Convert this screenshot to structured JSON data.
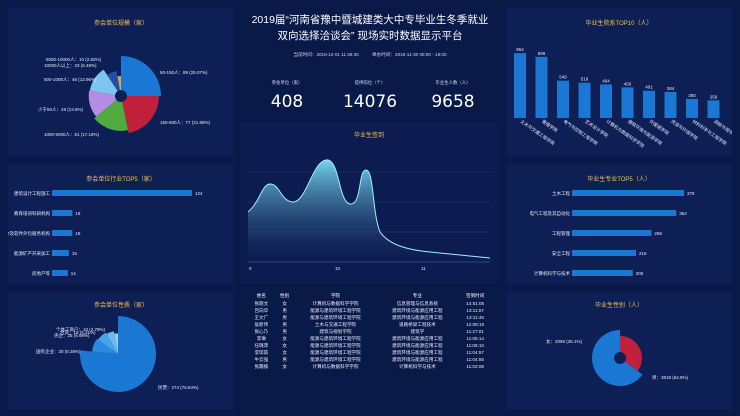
{
  "header": {
    "title_line1": "2019届“河南省豫中暨城建类大中专毕业生冬季就业",
    "title_line2": "双向选择洽谈会” 现场实时数据显示平台",
    "current_time_label": "当前时间：2018-12-01 11:38:30",
    "event_time_label": "举办时间：2018-11-30 08:00 - 18:00"
  },
  "stats": [
    {
      "label": "参会单位（家）",
      "value": "408"
    },
    {
      "label": "提供岗位（个）",
      "value": "14076"
    },
    {
      "label": "毕业生人数（人）",
      "value": "9658"
    }
  ],
  "panels": {
    "scale": {
      "title": "参会单位规模（家）",
      "labels": [
        "50-150人：89 (25.07%)",
        "150-500人：77 (21.69%)",
        "1000-5000人：61 (17.18%)",
        "少于50人：49 (13.8%)",
        "500-1000人：46 (12.96%)",
        "10000人以上：23 (6.48%)",
        "5000-10000人：10 (2.82%)"
      ],
      "colors": [
        "#1a78d4",
        "#c0203b",
        "#4faa3f",
        "#b48ce4",
        "#7ec4f0",
        "#2050a8",
        "#e8a040"
      ]
    },
    "industry": {
      "title": "参会单位行业TOP5（家）",
      "categories": [
        "建筑设计工程施工",
        "教育培训科研机构",
        "IT及软件外包服务机构",
        "能源矿产开采加工",
        "房地产等"
      ],
      "values": [
        124,
        18,
        18,
        15,
        14
      ]
    },
    "nature": {
      "title": "参会单位性质（家）",
      "labels": [
        "民营：274 (76.54%)",
        "国有企业：30 (8.38%)",
        "央企：25 (6.98%)",
        "合资：19 (5.31%)",
        "个体工商户：10 (2.79%)"
      ],
      "colors": [
        "#1a78d4",
        "#2a8ae0",
        "#4aa3ec",
        "#6bbaf2",
        "#8fcff8"
      ]
    },
    "sign_in": {
      "title": "毕业生签到",
      "x_ticks": [
        "9",
        "10",
        "11"
      ]
    },
    "department": {
      "title": "毕业生院系TOP10（人）",
      "categories": [
        "土木与交通工程学院",
        "管理学院",
        "电气与控制工程学院",
        "艺术设计学院",
        "计算机与数据科学学院",
        "建筑环境与能源学院",
        "外国语学院",
        "资源与环境学院",
        "材料科学与工程学院",
        "测绘与城市空间信息学院"
      ],
      "values": [
        954,
        899,
        549,
        519,
        494,
        450,
        401,
        384,
        280,
        259
      ]
    },
    "major": {
      "title": "毕业生专业TOP5（人）",
      "categories": [
        "土木工程",
        "电气工程及其自动化",
        "工程管理",
        "安全工程",
        "计算机科学与技术"
      ],
      "values": [
        378,
        352,
        268,
        216,
        205
      ]
    },
    "gender": {
      "title": "毕业生性别（人）",
      "labels": [
        "女：2065 (35.1%)",
        "男：3818 (64.9%)"
      ],
      "colors": [
        "#c0203b",
        "#1a78d4"
      ]
    }
  },
  "table": {
    "headers": [
      "姓名",
      "性别",
      "学院",
      "专业",
      "签到时间"
    ],
    "rows": [
      [
        "张晓文",
        "女",
        "计算机与数据科学学院",
        "信息管理与信息系统",
        "14:51:05"
      ],
      [
        "吕向华",
        "男",
        "能源与建筑环境工程学院",
        "建筑环境与能源应用工程",
        "13:11:57"
      ],
      [
        "王文广",
        "男",
        "能源与建筑环境工程学院",
        "建筑环境与能源应用工程",
        "13:11:46"
      ],
      [
        "侯新伟",
        "男",
        "土木与交通工程学院",
        "道路桥梁工程技术",
        "12:08:19"
      ],
      [
        "张心乃",
        "男",
        "建筑与规划学院",
        "建筑学",
        "11:27:01"
      ],
      [
        "李琳",
        "女",
        "能源与建筑环境工程学院",
        "建筑环境与能源应用工程",
        "11:05:14"
      ],
      [
        "任璐萍",
        "女",
        "能源与建筑环境工程学院",
        "建筑环境与能源应用工程",
        "11:05:10"
      ],
      [
        "李琼茹",
        "女",
        "能源与建筑环境工程学院",
        "建筑环境与能源应用工程",
        "11:04:57"
      ],
      [
        "牛云强",
        "男",
        "能源与建筑环境工程学院",
        "建筑环境与能源应用工程",
        "11:04:55"
      ],
      [
        "张霜楠",
        "女",
        "计算机与数据科学学院",
        "计算机科学与技术",
        "11:02:08"
      ]
    ]
  }
}
